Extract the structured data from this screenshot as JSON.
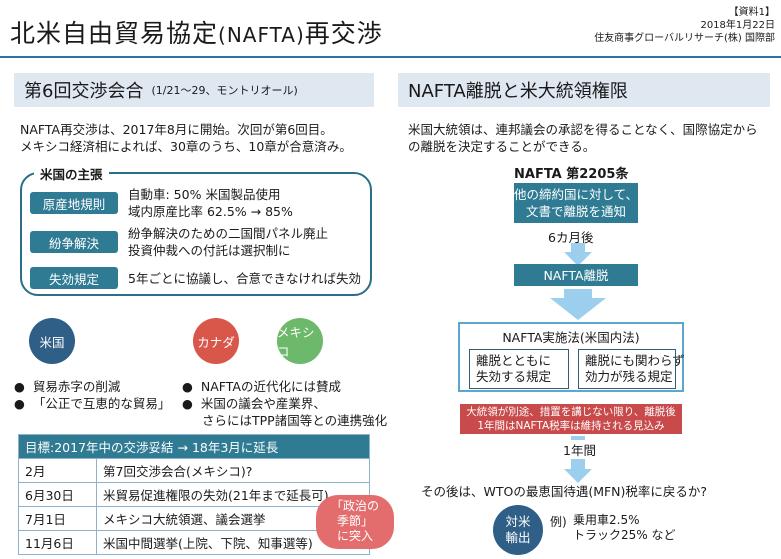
{
  "doc_tag": "【資料1】",
  "date": "2018年1月22日",
  "org": "住友商事グローバルリサーチ(株) 国際部",
  "title_main": "北米自由貿易協定",
  "title_paren": "(NAFTA)",
  "title_tail": "再交渉",
  "left": {
    "heading": "第6回交渉会合",
    "heading_sub": "(1/21～29、モントリオール)",
    "intro": [
      "NAFTA再交渉は、2017年8月に開始。次回が第6回目。",
      "メキシコ経済相によれば、30章のうち、10章が合意済み。"
    ],
    "claims_label": "米国の主張",
    "claims": [
      {
        "label": "原産地規則",
        "lines": [
          "自動車: 50% 米国製品使用",
          "域内原産比率 62.5% → 85%"
        ]
      },
      {
        "label": "紛争解決",
        "lines": [
          "紛争解決のための二国間パネル廃止",
          "投資仲裁への付託は選択制に"
        ]
      },
      {
        "label": "失効規定",
        "lines": [
          "5年ごとに協議し、合意できなければ失効"
        ]
      }
    ],
    "countries": [
      {
        "name": "米国",
        "color": "#2f5e86"
      },
      {
        "name": "カナダ",
        "color": "#d9574a"
      },
      {
        "name": "メキシコ",
        "color": "#6db96b"
      }
    ],
    "us_points": [
      "貿易赤字の削減",
      "「公正で互恵的な貿易」"
    ],
    "cm_points": [
      "NAFTAの近代化には賛成",
      "米国の議会や産業界、",
      "さらにはTPP諸国等との連携強化"
    ],
    "goal": "目標:2017年中の交渉妥結 → 18年3月に延長",
    "schedule": [
      {
        "date": "2月",
        "event": "第7回交渉会合(メキシコ)?"
      },
      {
        "date": "6月30日",
        "event": "米貿易促進権限の失効(21年まで延長可)"
      },
      {
        "date": "7月1日",
        "event": "メキシコ大統領選、議会選挙"
      },
      {
        "date": "11月6日",
        "event": "米国中間選挙(上院、下院、知事選等)"
      }
    ],
    "badge": [
      "「政治の",
      "季節」",
      "に突入"
    ]
  },
  "right": {
    "heading": "NAFTA離脱と米大統領権限",
    "intro": [
      "米国大統領は、連邦議会の承認を得ることなく、国際協定から",
      "の離脱を決定することができる。"
    ],
    "article": "NAFTA 第2205条",
    "notice": [
      "他の締約国に対して、",
      "文書で離脱を通知"
    ],
    "six_months": "6カ月後",
    "withdrawal": "NAFTA離脱",
    "impl_title": "NAFTA実施法(米国内法)",
    "impl_left": [
      "離脱とともに",
      "失効する規定"
    ],
    "impl_right": [
      "離脱にも関わらず",
      "効力が残る規定"
    ],
    "red": [
      "大統領が別途、措置を講じない限り、離脱後",
      "1年間はNAFTA税率は維持される見込み"
    ],
    "one_year": "1年間",
    "question": "その後は、WTOの最恵国待遇(MFN)税率に戻るか?",
    "export_label": [
      "対米",
      "輸出"
    ],
    "example_prefix": "例)",
    "examples": [
      "乗用車2.5%",
      "トラック25% など"
    ]
  }
}
